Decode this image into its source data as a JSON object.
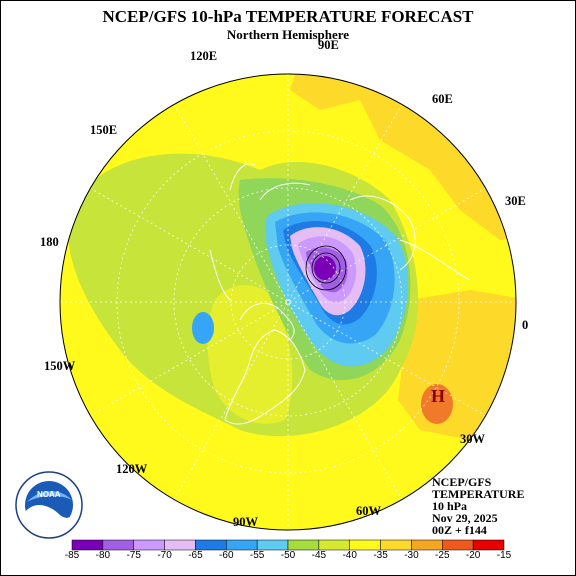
{
  "title": "NCEP/GFS 10-hPa TEMPERATURE FORECAST",
  "subtitle": "Northern Hemisphere",
  "longitude_labels": {
    "lon_90e": "90E",
    "lon_120e": "120E",
    "lon_60e": "60E",
    "lon_150e": "150E",
    "lon_30e": "30E",
    "lon_180": "180",
    "lon_0": "0",
    "lon_150w": "150W",
    "lon_30w": "30W",
    "lon_120w": "120W",
    "lon_60w": "60W",
    "lon_90w": "90W"
  },
  "high_marker": "H",
  "info": {
    "line1": "NCEP/GFS",
    "line2": "TEMPERATURE",
    "line3": "10 hPa",
    "line4": "Nov 29, 2025",
    "line5": "00Z + f144"
  },
  "logo": {
    "text": "NOAA"
  },
  "chart_data": {
    "type": "heatmap",
    "title": "NCEP/GFS 10-hPa TEMPERATURE FORECAST",
    "projection": "north polar stereographic",
    "variable": "temperature",
    "level": "10 hPa",
    "legend_placement": "bottom",
    "colorbar": {
      "ticks": [
        -85,
        -80,
        -75,
        -70,
        -65,
        -60,
        -55,
        -50,
        -45,
        -40,
        -35,
        -30,
        -25,
        -20,
        -15
      ],
      "colors": [
        "#7a00b8",
        "#a35ee6",
        "#cc99ff",
        "#e4bdf5",
        "#1e7be6",
        "#36a5f5",
        "#5fcbf0",
        "#a6dc3c",
        "#d5ea2e",
        "#fffa1c",
        "#fdd92a",
        "#f5a623",
        "#ee5a1e",
        "#e60000"
      ]
    },
    "high_marker": {
      "label": "H",
      "direction": "southeast of pole, near 30W"
    },
    "cold_core": {
      "minimum_range": [
        -85,
        -80
      ],
      "location": "displaced toward Eurasia / 90E-60E sector"
    }
  }
}
